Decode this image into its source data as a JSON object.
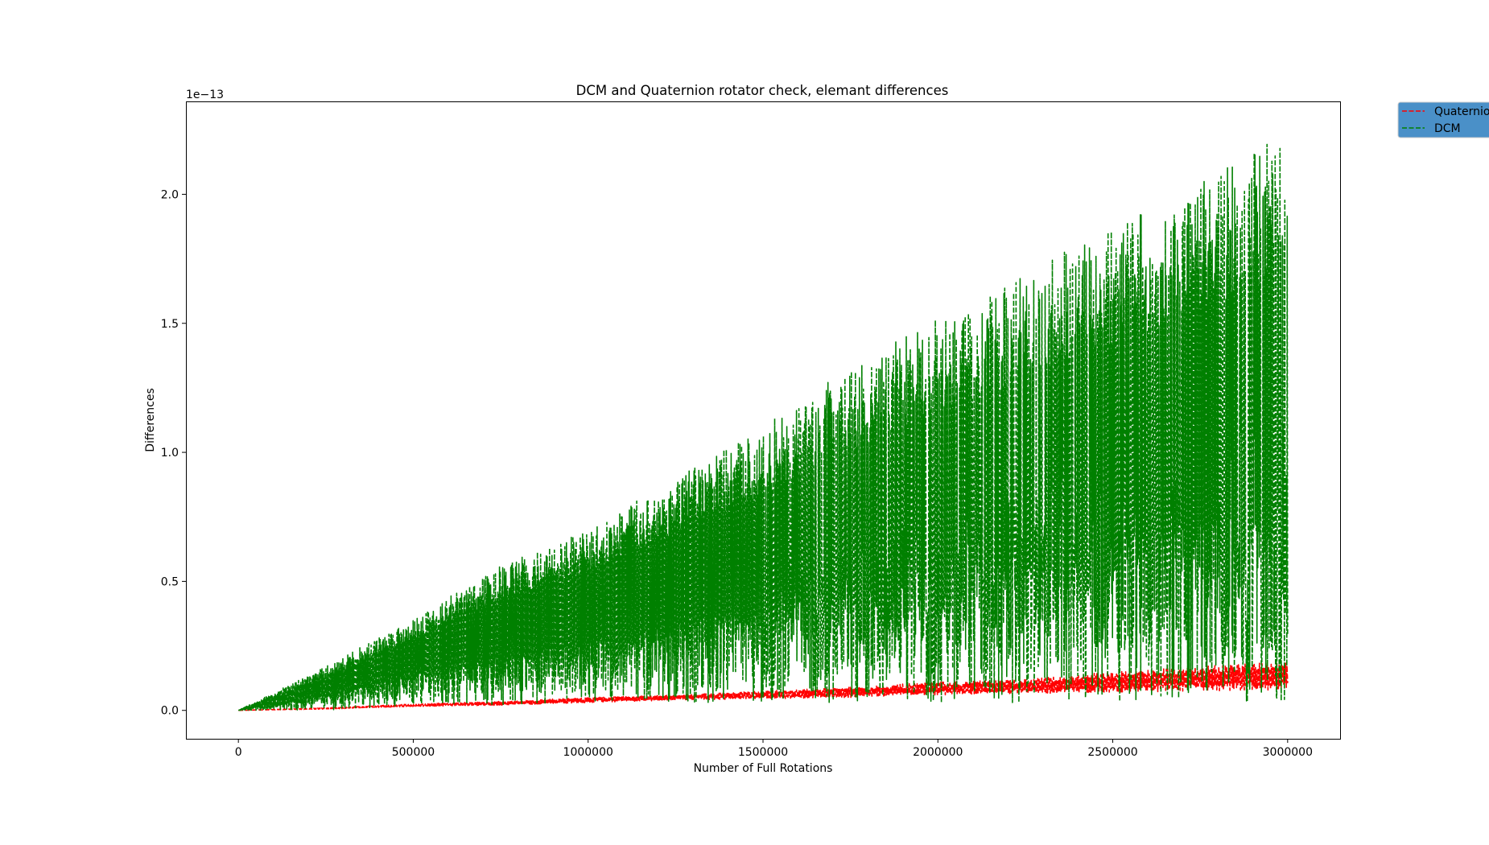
{
  "chart_data": {
    "type": "line",
    "title": "DCM and Quaternion rotator check, elemant differences",
    "xlabel": "Number of Full Rotations",
    "ylabel": "Differences",
    "y_offset_label": "1e−13",
    "xlim": [
      -150000,
      3150000
    ],
    "ylim": [
      -0.11,
      2.36
    ],
    "x_ticks": [
      0,
      500000,
      1000000,
      1500000,
      2000000,
      2500000,
      3000000
    ],
    "x_tick_labels": [
      "0",
      "500000",
      "1000000",
      "1500000",
      "2000000",
      "2500000",
      "3000000"
    ],
    "y_ticks": [
      0.0,
      0.5,
      1.0,
      1.5,
      2.0
    ],
    "y_tick_labels": [
      "0.0",
      "0.5",
      "1.0",
      "1.5",
      "2.0"
    ],
    "grid": false,
    "legend_position": "upper-right-outside",
    "legend_background": "#4a90c8",
    "series": [
      {
        "name": "Quaternion",
        "color": "#ff0000",
        "linestyle": "dashed",
        "x": [
          0,
          250000,
          500000,
          750000,
          1000000,
          1250000,
          1500000,
          1750000,
          2000000,
          2250000,
          2500000,
          2750000,
          3000000
        ],
        "y_upper": [
          0.0,
          0.01,
          0.025,
          0.035,
          0.05,
          0.06,
          0.075,
          0.09,
          0.11,
          0.12,
          0.15,
          0.17,
          0.19
        ],
        "y_lower": [
          0.0,
          0.005,
          0.015,
          0.02,
          0.03,
          0.04,
          0.045,
          0.05,
          0.06,
          0.065,
          0.07,
          0.075,
          0.08
        ]
      },
      {
        "name": "DCM",
        "color": "#008000",
        "linestyle": "dashed",
        "x": [
          0,
          250000,
          500000,
          750000,
          1000000,
          1250000,
          1500000,
          1750000,
          2000000,
          2250000,
          2500000,
          2750000,
          3000000
        ],
        "y_upper": [
          0.0,
          0.17,
          0.36,
          0.56,
          0.7,
          0.9,
          1.1,
          1.33,
          1.52,
          1.7,
          1.88,
          2.05,
          2.24
        ],
        "y_lower": [
          0.0,
          0.0,
          0.02,
          0.02,
          0.03,
          0.03,
          0.03,
          0.03,
          0.03,
          0.03,
          0.03,
          0.03,
          0.03
        ]
      }
    ]
  }
}
